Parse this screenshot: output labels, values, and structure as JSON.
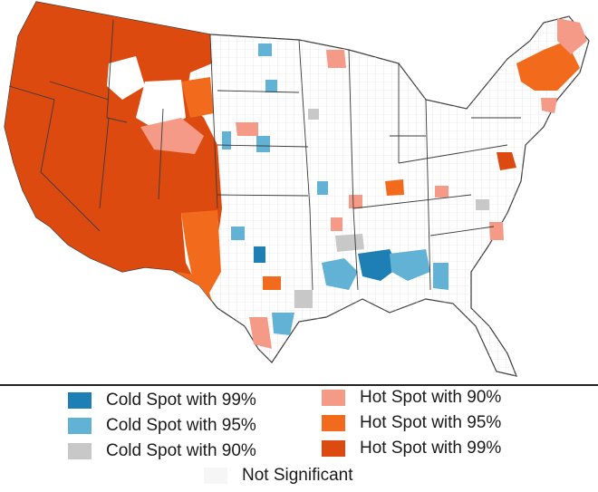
{
  "map": {
    "colors": {
      "land": "#ffffff",
      "state_border": "#3a3a3a",
      "county_border": "#d0d0d0",
      "hot99": "#dc4a10",
      "hot95": "#f26a1c",
      "hot90": "#f59a86",
      "cold99": "#1e7fb4",
      "cold95": "#61b2d4",
      "cold90": "#c8c8c8",
      "not_significant": "#f6f6f6"
    }
  },
  "legend": {
    "items": [
      {
        "key": "cold99",
        "label": "Cold Spot with 99%",
        "color": "#1e7fb4"
      },
      {
        "key": "cold95",
        "label": "Cold Spot with 95%",
        "color": "#61b2d4"
      },
      {
        "key": "cold90",
        "label": "Cold Spot with 90%",
        "color": "#c8c8c8"
      },
      {
        "key": "hot90",
        "label": "Hot Spot with 90%",
        "color": "#f59a86"
      },
      {
        "key": "hot95",
        "label": "Hot Spot with 95%",
        "color": "#f26a1c"
      },
      {
        "key": "hot99",
        "label": "Hot Spot with 99%",
        "color": "#dc4a10"
      },
      {
        "key": "ns",
        "label": "Not Significant",
        "color": "#f6f6f6"
      }
    ]
  }
}
